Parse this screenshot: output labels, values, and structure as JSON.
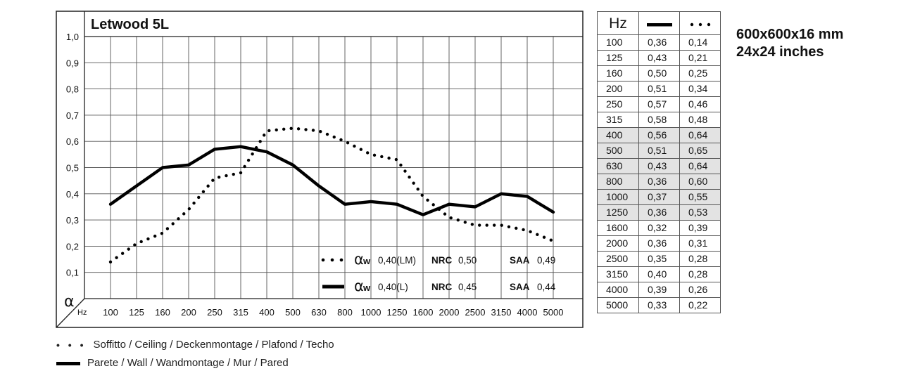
{
  "chart_data": {
    "type": "line",
    "title": "Letwood 5L",
    "ylabel": "α",
    "xlabel": "Hz",
    "ylim": [
      0,
      1.0
    ],
    "yticks": [
      "1,0",
      "0,9",
      "0,8",
      "0,7",
      "0,6",
      "0,5",
      "0,4",
      "0,3",
      "0,2",
      "0,1"
    ],
    "categories": [
      "100",
      "125",
      "160",
      "200",
      "250",
      "315",
      "400",
      "500",
      "630",
      "800",
      "1000",
      "1250",
      "1600",
      "2000",
      "2500",
      "3150",
      "4000",
      "5000"
    ],
    "series": [
      {
        "name": "Parete / Wall / Wandmontage / Mur / Pared",
        "style": "solid",
        "values": [
          0.36,
          0.43,
          0.5,
          0.51,
          0.57,
          0.58,
          0.56,
          0.51,
          0.43,
          0.36,
          0.37,
          0.36,
          0.32,
          0.36,
          0.35,
          0.4,
          0.39,
          0.33
        ]
      },
      {
        "name": "Soffitto / Ceiling / Deckenmontage / Plafond / Techo",
        "style": "dotted",
        "values": [
          0.14,
          0.21,
          0.25,
          0.34,
          0.46,
          0.48,
          0.64,
          0.65,
          0.64,
          0.6,
          0.55,
          0.53,
          0.39,
          0.31,
          0.28,
          0.28,
          0.26,
          0.22
        ]
      }
    ],
    "ratings": [
      {
        "alpha_symbol": "α",
        "alpha_sub": "w",
        "alpha_value": "0,40(LM)",
        "nrc_label": "NRC",
        "nrc_value": "0,50",
        "saa_label": "SAA",
        "saa_value": "0,49",
        "style": "dotted"
      },
      {
        "alpha_symbol": "α",
        "alpha_sub": "w",
        "alpha_value": "0,40(L)",
        "nrc_label": "NRC",
        "nrc_value": "0,45",
        "saa_label": "SAA",
        "saa_value": "0,44",
        "style": "solid"
      }
    ],
    "grid": true
  },
  "table": {
    "header": "Hz",
    "rows": [
      {
        "hz": "100",
        "wall": "0,36",
        "ceiling": "0,14",
        "shaded": false
      },
      {
        "hz": "125",
        "wall": "0,43",
        "ceiling": "0,21",
        "shaded": false
      },
      {
        "hz": "160",
        "wall": "0,50",
        "ceiling": "0,25",
        "shaded": false
      },
      {
        "hz": "200",
        "wall": "0,51",
        "ceiling": "0,34",
        "shaded": false
      },
      {
        "hz": "250",
        "wall": "0,57",
        "ceiling": "0,46",
        "shaded": false
      },
      {
        "hz": "315",
        "wall": "0,58",
        "ceiling": "0,48",
        "shaded": false
      },
      {
        "hz": "400",
        "wall": "0,56",
        "ceiling": "0,64",
        "shaded": true
      },
      {
        "hz": "500",
        "wall": "0,51",
        "ceiling": "0,65",
        "shaded": true
      },
      {
        "hz": "630",
        "wall": "0,43",
        "ceiling": "0,64",
        "shaded": true
      },
      {
        "hz": "800",
        "wall": "0,36",
        "ceiling": "0,60",
        "shaded": true
      },
      {
        "hz": "1000",
        "wall": "0,37",
        "ceiling": "0,55",
        "shaded": true
      },
      {
        "hz": "1250",
        "wall": "0,36",
        "ceiling": "0,53",
        "shaded": true
      },
      {
        "hz": "1600",
        "wall": "0,32",
        "ceiling": "0,39",
        "shaded": false
      },
      {
        "hz": "2000",
        "wall": "0,36",
        "ceiling": "0,31",
        "shaded": false
      },
      {
        "hz": "2500",
        "wall": "0,35",
        "ceiling": "0,28",
        "shaded": false
      },
      {
        "hz": "3150",
        "wall": "0,40",
        "ceiling": "0,28",
        "shaded": false
      },
      {
        "hz": "4000",
        "wall": "0,39",
        "ceiling": "0,26",
        "shaded": false
      },
      {
        "hz": "5000",
        "wall": "0,33",
        "ceiling": "0,22",
        "shaded": false
      }
    ]
  },
  "size_info": {
    "line1": "600x600x16 mm",
    "line2": "24x24 inches"
  },
  "legend": {
    "ceiling_dots": "• • •",
    "ceiling": "Soffitto / Ceiling / Deckenmontage / Plafond / Techo",
    "wall": "Parete / Wall / Wandmontage / Mur / Pared"
  },
  "colors": {
    "line": "#000000",
    "grid": "#555555",
    "shade": "#e3e3e3"
  }
}
